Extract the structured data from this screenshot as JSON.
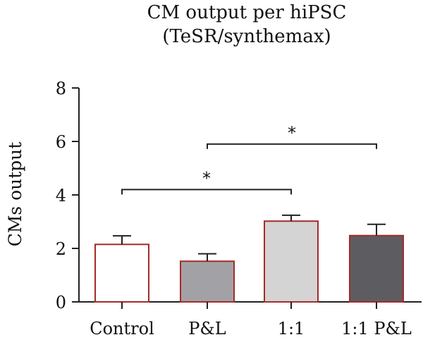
{
  "chart_data": {
    "type": "bar",
    "title": "CM output per hiPSC",
    "subtitle": "(TeSR/synthemax)",
    "xlabel": "",
    "ylabel": "CMs output",
    "ylim": [
      0,
      8
    ],
    "yticks": [
      0,
      2,
      4,
      6,
      8
    ],
    "categories": [
      "Control",
      "P&L",
      "1:1",
      "1:1 P&L"
    ],
    "values": [
      2.15,
      1.52,
      3.02,
      2.48
    ],
    "errors": [
      0.32,
      0.28,
      0.22,
      0.42
    ],
    "bar_fill_colors": [
      "#ffffff",
      "#a2a2a6",
      "#d4d4d4",
      "#5d5d61"
    ],
    "bar_edge_color": "#a52a2a",
    "significance": [
      {
        "from": "Control",
        "to": "1:1",
        "y": 4.2,
        "label": "*"
      },
      {
        "from": "P&L",
        "to": "1:1 P&L",
        "y": 5.9,
        "label": "*"
      }
    ]
  }
}
